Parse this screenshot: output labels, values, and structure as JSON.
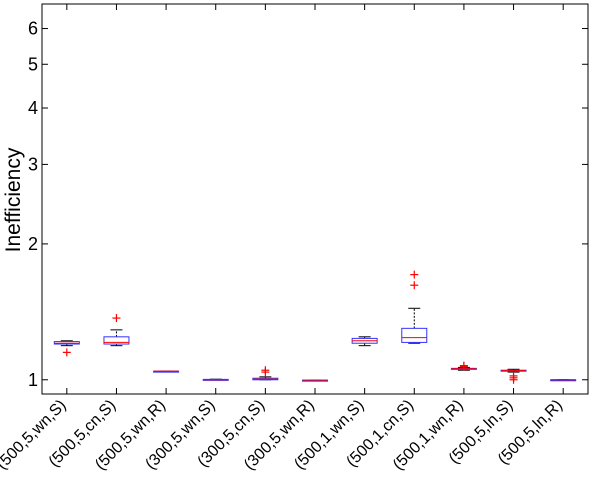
{
  "chart_data": {
    "type": "box",
    "ylabel": "Inefficiency",
    "y_scale": "log",
    "ylim": [
      0.93,
      6.8
    ],
    "yticks": [
      1,
      2,
      3,
      4,
      5,
      6
    ],
    "yticklabels": [
      "1",
      "2",
      "3",
      "4",
      "5",
      "6"
    ],
    "categories": [
      "(500,5,wn,S)",
      "(500,5,cn,S)",
      "(500,5,wn,R)",
      "(300,5,wn,S)",
      "(300,5,cn,S)",
      "(300,5,wn,R)",
      "(500,1,wn,S)",
      "(500,1,cn,S)",
      "(500,1,wn,R)",
      "(500,5,ln,S)",
      "(500,5,ln,R)"
    ],
    "boxes": [
      {
        "lower_whisker": 1.19,
        "q1": 1.2,
        "median": 1.205,
        "q3": 1.215,
        "upper_whisker": 1.22,
        "outliers": [
          1.15
        ]
      },
      {
        "lower_whisker": 1.19,
        "q1": 1.2,
        "median": 1.21,
        "q3": 1.245,
        "upper_whisker": 1.29,
        "outliers": [
          1.37
        ]
      },
      {
        "lower_whisker": 1.045,
        "q1": 1.045,
        "median": 1.045,
        "q3": 1.045,
        "upper_whisker": 1.045,
        "outliers": []
      },
      {
        "lower_whisker": 1.0,
        "q1": 1.0,
        "median": 1.0,
        "q3": 1.002,
        "upper_whisker": 1.003,
        "outliers": []
      },
      {
        "lower_whisker": 1.0,
        "q1": 1.0,
        "median": 1.003,
        "q3": 1.008,
        "upper_whisker": 1.015,
        "outliers": [
          1.04,
          1.05
        ]
      },
      {
        "lower_whisker": 0.998,
        "q1": 0.998,
        "median": 0.998,
        "q3": 0.998,
        "upper_whisker": 0.998,
        "outliers": []
      },
      {
        "lower_whisker": 1.19,
        "q1": 1.205,
        "median": 1.22,
        "q3": 1.235,
        "upper_whisker": 1.245,
        "outliers": []
      },
      {
        "lower_whisker": 1.205,
        "q1": 1.21,
        "median": 1.24,
        "q3": 1.3,
        "upper_whisker": 1.44,
        "outliers": [
          1.62,
          1.71
        ]
      },
      {
        "lower_whisker": 1.05,
        "q1": 1.055,
        "median": 1.058,
        "q3": 1.06,
        "upper_whisker": 1.065,
        "outliers": [
          1.07,
          1.075
        ]
      },
      {
        "lower_whisker": 1.04,
        "q1": 1.045,
        "median": 1.048,
        "q3": 1.05,
        "upper_whisker": 1.055,
        "outliers": [
          1.0,
          1.01,
          1.02
        ]
      },
      {
        "lower_whisker": 1.0,
        "q1": 1.0,
        "median": 1.0,
        "q3": 1.0,
        "upper_whisker": 1.0,
        "outliers": []
      }
    ],
    "colors": {
      "box": "#3333ff",
      "median": "#ff0000",
      "whisker": "#000000",
      "outlier": "#ff0000",
      "axis": "#000000"
    },
    "grid": false,
    "legend": "none"
  }
}
